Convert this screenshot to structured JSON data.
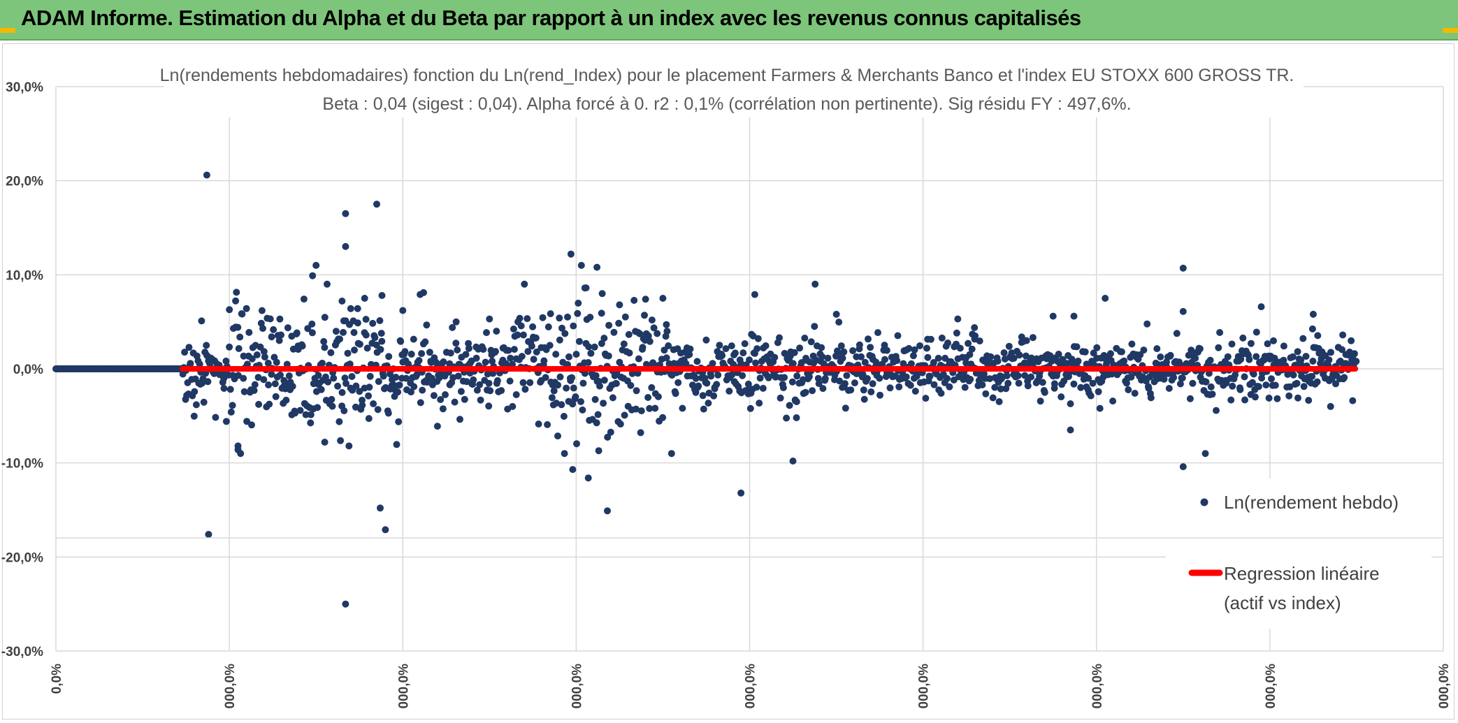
{
  "banner": {
    "title": "ADAM Informe. Estimation du Alpha et du Beta par rapport à un index avec les revenus connus capitalisés"
  },
  "colors": {
    "banner_bg": "#7dc57a",
    "accent_corner": "#f5b800",
    "point": "#203864",
    "regression": "#ff0000",
    "grid": "#d9d9d9"
  },
  "chart_data": {
    "type": "scatter",
    "title_line1": "Ln(rendements hebdomadaires) fonction du Ln(rend_Index) pour le placement Farmers & Merchants Banco et l'index EU STOXX 600 GROSS TR.",
    "title_line2": "Beta : 0,04 (sigest : 0,04). Alpha forcé à 0. r2 : 0,1% (corrélation non pertinente). Sig résidu FY : 497,6%.",
    "xlabel": "",
    "ylabel": "",
    "ylim": [
      -30,
      30
    ],
    "y_ticks": [
      30,
      20,
      10,
      0,
      -10,
      -20,
      -30
    ],
    "y_tick_labels": [
      "30,0%",
      "20,0%",
      "10,0%",
      "0,0%",
      "-10,0%",
      "-20,0%",
      "-30,0%"
    ],
    "x_ticks": [
      0,
      1,
      2,
      3,
      4,
      5,
      6,
      7,
      8
    ],
    "x_tick_labels": [
      "0,0%",
      "000,0%",
      "000,0%",
      "000,0%",
      "000,0%",
      "000,0%",
      "000,0%",
      "000,0%",
      "000,0%"
    ],
    "xlim": [
      0,
      8
    ],
    "grid": true,
    "legend_position": "right",
    "legend": [
      {
        "label": "Ln(rendement hebdo)",
        "marker": "point"
      },
      {
        "label_line1": "Regression linéaire",
        "label_line2": "(actif vs index)",
        "marker": "line"
      }
    ],
    "series_scatter": {
      "name": "Ln(rendement hebdo)",
      "zero_segment": {
        "x_start": 0.0,
        "x_end": 0.73,
        "y": 0
      },
      "noise_bands": [
        {
          "x_start": 0.73,
          "x_end": 1.0,
          "sigma": 1.6
        },
        {
          "x_start": 1.0,
          "x_end": 2.0,
          "sigma": 3.2
        },
        {
          "x_start": 2.0,
          "x_end": 2.6,
          "sigma": 1.7
        },
        {
          "x_start": 2.6,
          "x_end": 3.5,
          "sigma": 3.4
        },
        {
          "x_start": 3.5,
          "x_end": 4.3,
          "sigma": 1.6
        },
        {
          "x_start": 4.3,
          "x_end": 7.5,
          "sigma": 1.5
        }
      ],
      "n_noise_points": 1500,
      "outliers": [
        [
          0.87,
          20.6
        ],
        [
          0.88,
          -17.6
        ],
        [
          1.05,
          -8.6
        ],
        [
          1.05,
          -8.2
        ],
        [
          1.48,
          9.9
        ],
        [
          1.5,
          11.0
        ],
        [
          1.55,
          -7.8
        ],
        [
          1.65,
          7.2
        ],
        [
          1.66,
          5.1
        ],
        [
          1.67,
          16.5
        ],
        [
          1.67,
          13.0
        ],
        [
          1.69,
          -8.2
        ],
        [
          1.7,
          6.4
        ],
        [
          1.74,
          6.4
        ],
        [
          1.78,
          7.5
        ],
        [
          1.85,
          17.5
        ],
        [
          1.87,
          -14.8
        ],
        [
          1.9,
          -17.1
        ],
        [
          1.88,
          7.8
        ],
        [
          1.67,
          -25.0
        ],
        [
          2.0,
          6.2
        ],
        [
          2.1,
          7.9
        ],
        [
          2.12,
          8.1
        ],
        [
          2.2,
          -6.1
        ],
        [
          2.5,
          5.3
        ],
        [
          2.95,
          5.5
        ],
        [
          2.97,
          12.2
        ],
        [
          2.98,
          -10.7
        ],
        [
          3.03,
          11.0
        ],
        [
          3.05,
          8.6
        ],
        [
          3.07,
          -11.6
        ],
        [
          3.12,
          10.8
        ],
        [
          3.13,
          -8.7
        ],
        [
          3.15,
          8.0
        ],
        [
          3.18,
          -15.1
        ],
        [
          3.25,
          6.8
        ],
        [
          3.4,
          7.4
        ],
        [
          3.5,
          7.5
        ],
        [
          3.52,
          4.7
        ],
        [
          3.55,
          -9.0
        ],
        [
          3.95,
          -13.2
        ],
        [
          4.03,
          7.9
        ],
        [
          4.25,
          -9.8
        ],
        [
          4.27,
          -5.2
        ],
        [
          4.5,
          5.8
        ],
        [
          5.2,
          5.3
        ],
        [
          5.3,
          3.5
        ],
        [
          5.75,
          5.6
        ],
        [
          5.85,
          -6.5
        ],
        [
          5.87,
          5.6
        ],
        [
          6.02,
          -4.2
        ],
        [
          6.05,
          7.5
        ],
        [
          6.5,
          10.7
        ],
        [
          6.5,
          6.1
        ],
        [
          6.5,
          -10.4
        ],
        [
          6.95,
          6.6
        ],
        [
          7.25,
          5.8
        ],
        [
          7.35,
          -4.0
        ],
        [
          7.42,
          3.6
        ]
      ]
    },
    "series_regression": {
      "name": "Regression linéaire (actif vs index)",
      "beta": 0.04,
      "alpha": 0,
      "x_start": 0.73,
      "x_end": 7.5
    }
  }
}
